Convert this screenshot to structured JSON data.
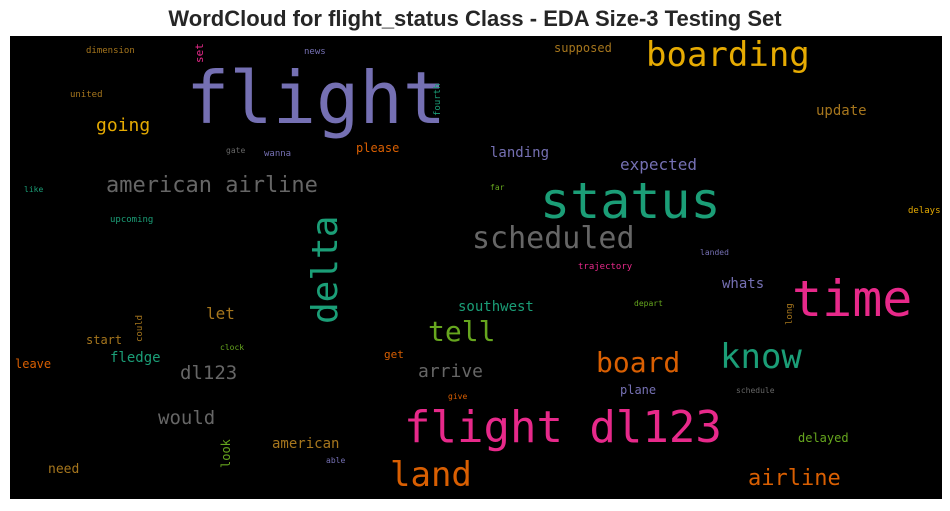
{
  "title": "WordCloud for flight_status Class - EDA Size-3 Testing Set",
  "words": [
    {
      "text": "flight",
      "color": "#7570b3"
    },
    {
      "text": "status",
      "color": "#1b9e77"
    },
    {
      "text": "time",
      "color": "#e7298a"
    },
    {
      "text": "flight dl123",
      "color": "#e7298a"
    },
    {
      "text": "boarding",
      "color": "#e6ab02"
    },
    {
      "text": "scheduled",
      "color": "#666666"
    },
    {
      "text": "delta",
      "color": "#1b9e77"
    },
    {
      "text": "know",
      "color": "#1b9e77"
    },
    {
      "text": "land",
      "color": "#d95f02"
    },
    {
      "text": "american airline",
      "color": "#666666"
    },
    {
      "text": "tell",
      "color": "#66a61e"
    },
    {
      "text": "board",
      "color": "#d95f02"
    },
    {
      "text": "airline",
      "color": "#d95f02"
    },
    {
      "text": "going",
      "color": "#e6ab02"
    },
    {
      "text": "would",
      "color": "#666666"
    },
    {
      "text": "dl123",
      "color": "#666666"
    },
    {
      "text": "arrive",
      "color": "#666666"
    },
    {
      "text": "expected",
      "color": "#7570b3"
    },
    {
      "text": "landing",
      "color": "#7570b3"
    },
    {
      "text": "update",
      "color": "#a6761d"
    },
    {
      "text": "southwest",
      "color": "#1b9e77"
    },
    {
      "text": "let",
      "color": "#a6761d"
    },
    {
      "text": "fledge",
      "color": "#1b9e77"
    },
    {
      "text": "american",
      "color": "#a6761d"
    },
    {
      "text": "delayed",
      "color": "#66a61e"
    },
    {
      "text": "whats",
      "color": "#7570b3"
    },
    {
      "text": "supposed",
      "color": "#a6761d"
    },
    {
      "text": "please",
      "color": "#d95f02"
    },
    {
      "text": "start",
      "color": "#a6761d"
    },
    {
      "text": "need",
      "color": "#a6761d"
    },
    {
      "text": "leave",
      "color": "#d95f02"
    },
    {
      "text": "plane",
      "color": "#7570b3"
    },
    {
      "text": "get",
      "color": "#d95f02"
    },
    {
      "text": "look",
      "color": "#66a61e"
    },
    {
      "text": "set",
      "color": "#e7298a"
    },
    {
      "text": "fourth",
      "color": "#1b9e77"
    },
    {
      "text": "could",
      "color": "#a6761d"
    },
    {
      "text": "long",
      "color": "#a6761d"
    },
    {
      "text": "dimension",
      "color": "#a6761d"
    },
    {
      "text": "news",
      "color": "#7570b3"
    },
    {
      "text": "united",
      "color": "#a6761d"
    },
    {
      "text": "gate",
      "color": "#666666"
    },
    {
      "text": "wanna",
      "color": "#7570b3"
    },
    {
      "text": "like",
      "color": "#1b9e77"
    },
    {
      "text": "upcoming",
      "color": "#1b9e77"
    },
    {
      "text": "far",
      "color": "#66a61e"
    },
    {
      "text": "delays",
      "color": "#e6ab02"
    },
    {
      "text": "trajectory",
      "color": "#e7298a"
    },
    {
      "text": "landed",
      "color": "#7570b3"
    },
    {
      "text": "depart",
      "color": "#66a61e"
    },
    {
      "text": "clock",
      "color": "#66a61e"
    },
    {
      "text": "give",
      "color": "#d95f02"
    },
    {
      "text": "schedule",
      "color": "#666666"
    },
    {
      "text": "able",
      "color": "#7570b3"
    }
  ]
}
